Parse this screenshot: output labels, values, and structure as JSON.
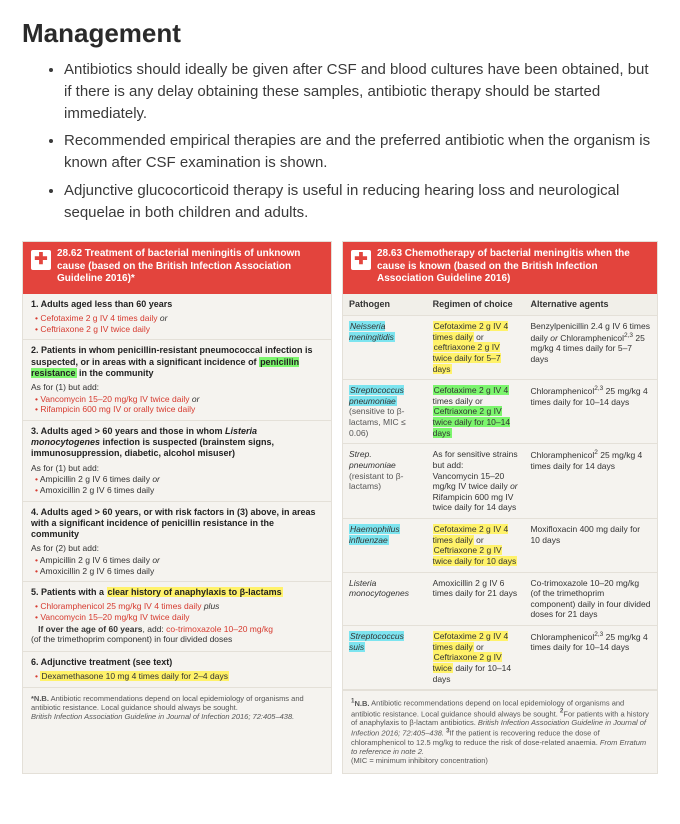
{
  "heading": "Management",
  "bullets": [
    "Antibiotics should ideally be given after CSF and blood cultures have been obtained, but if there is any delay obtaining these samples, antibiotic therapy should be started immediately.",
    "Recommended empirical therapies are and the preferred antibiotic when the organism is known after CSF examination is shown.",
    "Adjunctive glucocorticoid therapy is useful in reducing hearing loss and neurological sequelae in both children and adults."
  ],
  "left": {
    "title": "28.62 Treatment of bacterial meningitis of unknown cause (based on the British Infection Association Guideline 2016)*",
    "sections": [
      {
        "title": "1. Adults aged less than 60 years",
        "lines": [
          {
            "html": "<span class='red-text'>Cefotaxime 2 g IV 4 times daily</span> <em>or</em>",
            "red": true
          },
          {
            "html": "<span class='red-text'>Ceftriaxone 2 g IV twice daily</span>",
            "red": true
          }
        ]
      },
      {
        "title_html": "2. Patients in whom penicillin-resistant pneumococcal infection is suspected, or in areas with a significant incidence of <span class='hi-green'>penicillin resistance</span> in the community",
        "pre": "As for (1) but add:",
        "lines": [
          {
            "html": "<span class='red-text'>Vancomycin 15–20 mg/kg IV twice daily</span> <em>or</em>",
            "red": true
          },
          {
            "html": "<span class='red-text'>Rifampicin 600 mg IV or orally twice daily</span>",
            "red": true
          }
        ]
      },
      {
        "title_html": "3. Adults aged > 60 years and those in whom <em>Listeria monocytogenes</em> infection is suspected (brainstem signs, immunosuppression, diabetic, alcohol misuser)",
        "pre": "As for (1) but add:",
        "lines": [
          {
            "html": "Ampicillin 2 g IV 6 times daily <em>or</em>",
            "red": true
          },
          {
            "html": "Amoxicillin 2 g IV 6 times daily",
            "red": true
          }
        ]
      },
      {
        "title": "4. Adults aged > 60 years, or with risk factors in (3) above, in areas with a significant incidence of penicillin resistance in the community",
        "pre": "As for (2) but add:",
        "lines": [
          {
            "html": "Ampicillin 2 g IV 6 times daily <em>or</em>",
            "red": true
          },
          {
            "html": "Amoxicillin 2 g IV 6 times daily",
            "red": true
          }
        ]
      },
      {
        "title_html": "5. Patients with a <span class='hi-yellow'>clear history of anaphylaxis to β-lactams</span>",
        "lines": [
          {
            "html": "<span class='red-text'>Chloramphenicol 25 mg/kg IV 4 times daily</span> <em>plus</em>",
            "red": true
          },
          {
            "html": "<span class='red-text'>Vancomycin 15–20 mg/kg IV twice daily</span>",
            "red": true
          }
        ],
        "post_html": "&nbsp;&nbsp;&nbsp;<b>If over the age of 60 years</b>, add: <span class='red-text'>co-trimoxazole 10–20 mg/kg</span><br>(of the trimethoprim component) in four divided doses"
      },
      {
        "title": "6. Adjunctive treatment (see text)",
        "lines": [
          {
            "html": "<span class='hi-yellow'>Dexamethasone 10 mg 4 times daily for 2–4 days</span>",
            "red": true
          }
        ]
      }
    ],
    "footnote_html": "<b>*N.B.</b> Antibiotic recommendations depend on local epidemiology of organisms and antibiotic resistance. Local guidance should always be sought.<br><em>British Infection Association Guideline in Journal of Infection 2016; 72:405–438.</em>"
  },
  "right": {
    "title": "28.63 Chemotherapy of bacterial meningitis when the cause is known (based on the British Infection Association Guideline 2016)",
    "columns": [
      "Pathogen",
      "Regimen of choice",
      "Alternative agents"
    ],
    "rows": [
      {
        "pathogen_html": "<span class='path-ital hi-cyan'>Neisseria meningitidis</span>",
        "regimen_html": "<span class='hi-yellow'>Cefotaxime 2 g IV 4 times daily</span> or <span class='hi-yellow'>ceftriaxone 2 g IV twice daily for 5–7 days</span>",
        "alt_html": "Benzylpenicillin 2.4 g IV 6 times daily <em>or</em> Chloramphenicol<span class='sup'>2,3</span> 25 mg/kg 4 times daily for 5–7 days"
      },
      {
        "pathogen_html": "<span class='path-ital hi-cyan'>Streptococcus pneumoniae</span><br><span class='muted'>(sensitive to β-lactams, MIC ≤ 0.06)</span>",
        "regimen_html": "<span class='hi-green'>Cefotaxime 2 g IV 4</span> times daily or <span class='hi-green'>Ceftriaxone 2 g IV twice daily for 10–14 days</span>",
        "alt_html": "Chloramphenicol<span class='sup'>2,3</span> 25 mg/kg 4 times daily for 10–14 days"
      },
      {
        "pathogen_html": "<span class='path-ital'>Strep. pneumoniae</span><br><span class='muted'>(resistant to β-lactams)</span>",
        "regimen_html": "As for sensitive strains but add:<br>Vancomycin 15–20 mg/kg IV twice daily <em>or</em><br>Rifampicin 600 mg IV twice daily for 14 days",
        "alt_html": "Chloramphenicol<span class='sup'>2</span> 25 mg/kg 4 times daily for 14 days"
      },
      {
        "pathogen_html": "<span class='path-ital hi-cyan'>Haemophilus influenzae</span>",
        "regimen_html": "<span class='hi-yellow'>Cefotaxime 2 g IV 4 times daily</span> or <span class='hi-yellow'>Ceftriaxone 2 g IV twice daily for 10 days</span>",
        "alt_html": "Moxifloxacin 400 mg daily for 10 days"
      },
      {
        "pathogen_html": "<span class='path-ital'>Listeria monocytogenes</span>",
        "regimen_html": "Amoxicillin 2 g IV 6 times daily for 21 days",
        "alt_html": "Co-trimoxazole 10–20 mg/kg (of the trimethoprim component) daily in four divided doses for 21 days"
      },
      {
        "pathogen_html": "<span class='path-ital hi-cyan'>Streptococcus suis</span>",
        "regimen_html": "<span class='hi-yellow'>Cefotaxime 2 g IV 4 times daily</span> or <span class='hi-yellow'>Ceftriaxone 2 g IV twice</span> daily for 10–14 days",
        "alt_html": "Chloramphenicol<span class='sup'>2,3</span> 25 mg/kg 4 times daily for 10–14 days"
      }
    ],
    "footnote_html": "<b><sup>1</sup>N.B.</b> Antibiotic recommendations depend on local epidemiology of organisms and antibiotic resistance. Local guidance should always be sought. <b><sup>2</sup></b>For patients with a history of anaphylaxis to β-lactam antibiotics. <em>British Infection Association Guideline in Journal of Infection 2016; 72:405–438.</em> <b><sup>3</sup></b>If the patient is recovering reduce the dose of chloramphenicol to 12.5 mg/kg to reduce the risk of dose-related anaemia. <em>From Erratum to reference in note 2.</em><br>(MIC = minimum inhibitory concentration)"
  },
  "colors": {
    "header_bg": "#e3443d",
    "panel_bg": "#f5f3ef",
    "hi_green": "#7cf56d",
    "hi_yellow": "#fff26a",
    "hi_cyan": "#7de4ef",
    "red_text": "#d63a2f"
  }
}
